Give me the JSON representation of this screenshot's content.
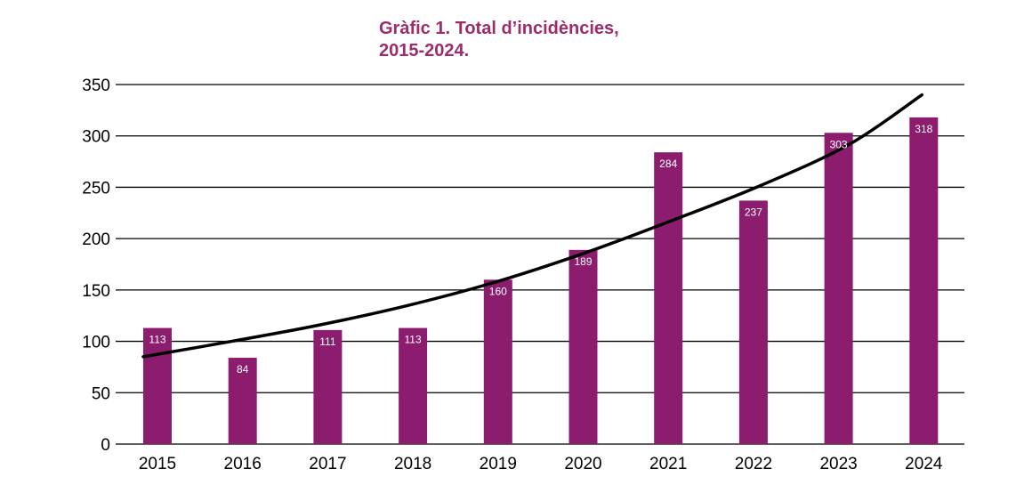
{
  "chart_data": {
    "type": "bar",
    "title": "Gràfic 1. Total d’incidències,\n2015-2024.",
    "xlabel": "",
    "ylabel": "",
    "categories": [
      "2015",
      "2016",
      "2017",
      "2018",
      "2019",
      "2020",
      "2021",
      "2022",
      "2023",
      "2024"
    ],
    "values": [
      113,
      84,
      111,
      113,
      160,
      189,
      284,
      237,
      303,
      318
    ],
    "data_labels": [
      "113",
      "84",
      "111",
      "113",
      "160",
      "189",
      "284",
      "237",
      "303",
      "318"
    ],
    "ylim": [
      0,
      350
    ],
    "yticks": [
      0,
      50,
      100,
      150,
      200,
      250,
      300,
      350
    ],
    "grid": true,
    "legend": "none",
    "trendline": {
      "type": "exponential",
      "points": [
        {
          "x": "2015",
          "y": 85
        },
        {
          "x": "2016",
          "y": 100
        },
        {
          "x": "2017",
          "y": 116
        },
        {
          "x": "2018",
          "y": 135
        },
        {
          "x": "2019",
          "y": 158
        },
        {
          "x": "2020",
          "y": 186
        },
        {
          "x": "2021",
          "y": 218
        },
        {
          "x": "2022",
          "y": 252
        },
        {
          "x": "2023",
          "y": 292
        },
        {
          "x": "2024",
          "y": 340
        }
      ]
    },
    "colors": {
      "bar": "#8b1c6e",
      "title": "#9b2d6b",
      "trendline": "#000000",
      "grid": "#000000",
      "label": "#ffffff",
      "axis_text": "#000000"
    }
  }
}
